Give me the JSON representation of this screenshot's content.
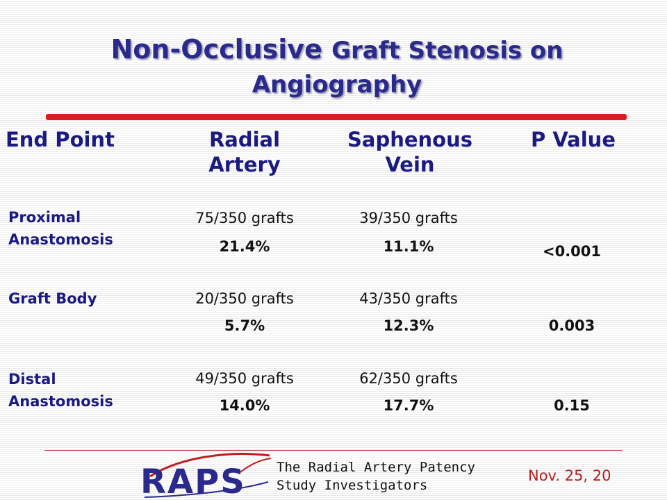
{
  "title": {
    "part1": "Non-Occlusive",
    "part2": "Graft Stenosis on Angiography"
  },
  "colors": {
    "title": "#2a2a8c",
    "header": "#1a1a80",
    "accent_rule": "#d81e1e",
    "date": "#b02020"
  },
  "table": {
    "headers": [
      "End Point",
      "Radial\nArtery",
      "Saphenous\nVein",
      "P Value"
    ],
    "rows": [
      {
        "endpoint": "Proximal\nAnastomosis",
        "radial_count": "75/350 grafts",
        "radial_pct": "21.4%",
        "saph_count": "39/350 grafts",
        "saph_pct": "11.1%",
        "p_value": "<0.001"
      },
      {
        "endpoint": "Graft Body",
        "radial_count": "20/350 grafts",
        "radial_pct": "5.7%",
        "saph_count": "43/350 grafts",
        "saph_pct": "12.3%",
        "p_value": "0.003"
      },
      {
        "endpoint": "Distal\nAnastomosis",
        "radial_count": "49/350 grafts",
        "radial_pct": "14.0%",
        "saph_count": "62/350 grafts",
        "saph_pct": "17.7%",
        "p_value": "0.15"
      }
    ]
  },
  "footer": {
    "logo_text": "RAPS",
    "investigators": "The Radial Artery Patency\nStudy Investigators",
    "date": "Nov. 25, 20"
  }
}
